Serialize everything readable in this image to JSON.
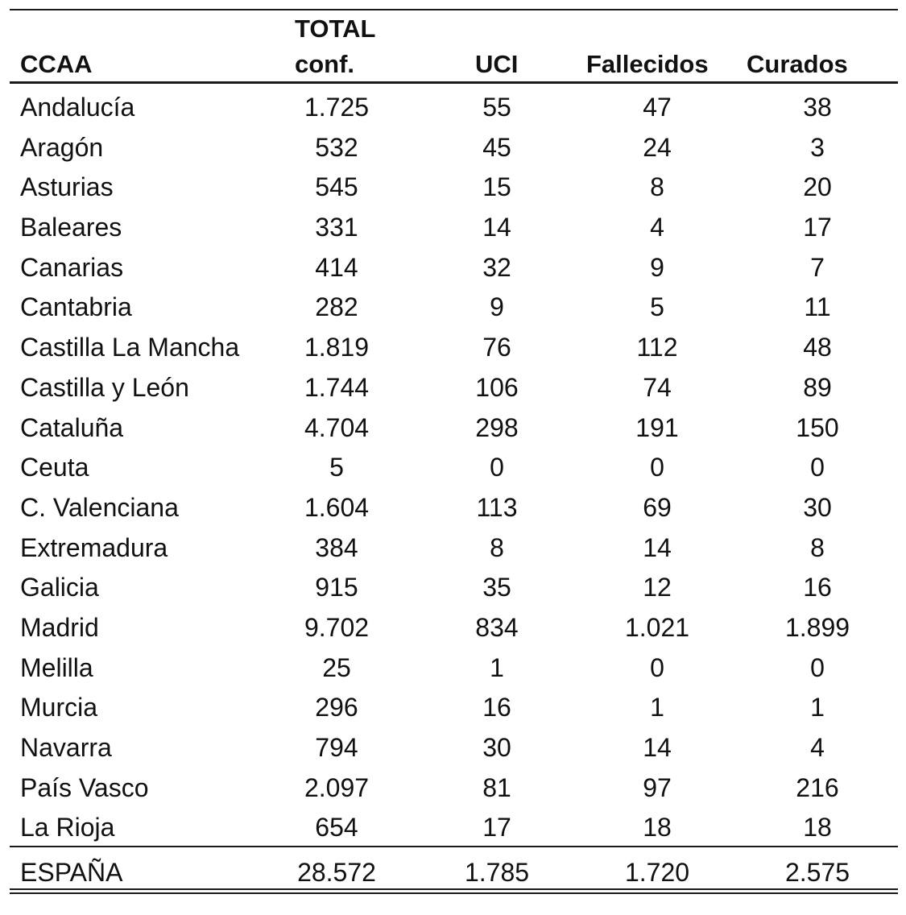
{
  "headers": {
    "ccaa": "CCAA",
    "total_line1": "TOTAL",
    "total_line2": "conf.",
    "uci": "UCI",
    "fallecidos": "Fallecidos",
    "curados": "Curados"
  },
  "rows": [
    {
      "ccaa": "Andalucía",
      "total": "1.725",
      "uci": "55",
      "fallecidos": "47",
      "curados": "38"
    },
    {
      "ccaa": "Aragón",
      "total": "532",
      "uci": "45",
      "fallecidos": "24",
      "curados": "3"
    },
    {
      "ccaa": "Asturias",
      "total": "545",
      "uci": "15",
      "fallecidos": "8",
      "curados": "20"
    },
    {
      "ccaa": "Baleares",
      "total": "331",
      "uci": "14",
      "fallecidos": "4",
      "curados": "17"
    },
    {
      "ccaa": "Canarias",
      "total": "414",
      "uci": "32",
      "fallecidos": "9",
      "curados": "7"
    },
    {
      "ccaa": "Cantabria",
      "total": "282",
      "uci": "9",
      "fallecidos": "5",
      "curados": "11"
    },
    {
      "ccaa": "Castilla La Mancha",
      "total": "1.819",
      "uci": "76",
      "fallecidos": "112",
      "curados": "48"
    },
    {
      "ccaa": "Castilla y León",
      "total": "1.744",
      "uci": "106",
      "fallecidos": "74",
      "curados": "89"
    },
    {
      "ccaa": "Cataluña",
      "total": "4.704",
      "uci": "298",
      "fallecidos": "191",
      "curados": "150"
    },
    {
      "ccaa": "Ceuta",
      "total": "5",
      "uci": "0",
      "fallecidos": "0",
      "curados": "0"
    },
    {
      "ccaa": "C. Valenciana",
      "total": "1.604",
      "uci": "113",
      "fallecidos": "69",
      "curados": "30"
    },
    {
      "ccaa": "Extremadura",
      "total": "384",
      "uci": "8",
      "fallecidos": "14",
      "curados": "8"
    },
    {
      "ccaa": "Galicia",
      "total": "915",
      "uci": "35",
      "fallecidos": "12",
      "curados": "16"
    },
    {
      "ccaa": "Madrid",
      "total": "9.702",
      "uci": "834",
      "fallecidos": "1.021",
      "curados": "1.899"
    },
    {
      "ccaa": "Melilla",
      "total": "25",
      "uci": "1",
      "fallecidos": "0",
      "curados": "0"
    },
    {
      "ccaa": "Murcia",
      "total": "296",
      "uci": "16",
      "fallecidos": "1",
      "curados": "1"
    },
    {
      "ccaa": "Navarra",
      "total": "794",
      "uci": "30",
      "fallecidos": "14",
      "curados": "4"
    },
    {
      "ccaa": "País Vasco",
      "total": "2.097",
      "uci": "81",
      "fallecidos": "97",
      "curados": "216"
    },
    {
      "ccaa": "La Rioja",
      "total": "654",
      "uci": "17",
      "fallecidos": "18",
      "curados": "18"
    }
  ],
  "total_row": {
    "ccaa": "ESPAÑA",
    "total": "28.572",
    "uci": "1.785",
    "fallecidos": "1.720",
    "curados": "2.575"
  }
}
